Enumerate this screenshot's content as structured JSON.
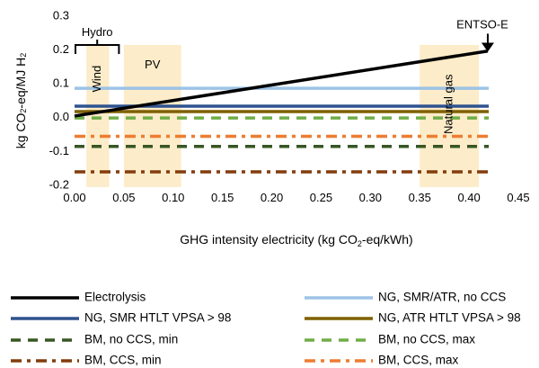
{
  "chart_data": {
    "type": "line",
    "xlabel": "GHG intensity electricity (kg CO2-eq/kWh)",
    "ylabel": "kg CO2-eq/MJ H2",
    "xlim": [
      0,
      0.45
    ],
    "ylim": [
      -0.2,
      0.3
    ],
    "x_ticks": [
      "0.00",
      "0.05",
      "0.10",
      "0.15",
      "0.20",
      "0.25",
      "0.30",
      "0.35",
      "0.40",
      "0.45"
    ],
    "y_ticks": [
      "-0.2",
      "-0.1",
      "0.0",
      "0.1",
      "0.2",
      "0.3"
    ],
    "x_tick_values": [
      0,
      0.05,
      0.1,
      0.15,
      0.2,
      0.25,
      0.3,
      0.35,
      0.4,
      0.45
    ],
    "y_tick_values": [
      -0.2,
      -0.1,
      0,
      0.1,
      0.2,
      0.3
    ],
    "grid": false,
    "legend_position": "bottom",
    "bands": [
      {
        "label": "Wind",
        "x_range": [
          0.012,
          0.035
        ],
        "label_orientation": "vertical"
      },
      {
        "label": "PV",
        "x_range": [
          0.05,
          0.108
        ],
        "label_orientation": "horizontal"
      },
      {
        "label": "Natural gas",
        "x_range": [
          0.35,
          0.41
        ],
        "label_orientation": "vertical"
      }
    ],
    "annotations": [
      {
        "text": "Hydro",
        "type": "bracket",
        "x_range": [
          0.0,
          0.045
        ],
        "y": 0.215
      },
      {
        "text": "ENTSO-E",
        "type": "arrow",
        "x": 0.419,
        "y": 0.195
      }
    ],
    "series": [
      {
        "name": "Electrolysis",
        "x": [
          0,
          0.419
        ],
        "y": [
          0.005,
          0.197
        ],
        "color": "#000000",
        "style": "solid"
      },
      {
        "name": "NG, SMR/ATR, no CCS",
        "x": [
          0,
          0.42
        ],
        "y": [
          0.087,
          0.087
        ],
        "color": "#9dc3e6",
        "style": "solid"
      },
      {
        "name": "NG, SMR HTLT VPSA > 98",
        "x": [
          0,
          0.42
        ],
        "y": [
          0.034,
          0.034
        ],
        "color": "#2f528f",
        "style": "solid"
      },
      {
        "name": "NG, ATR HTLT VPSA > 98",
        "x": [
          0,
          0.42
        ],
        "y": [
          0.018,
          0.018
        ],
        "color": "#7f6000",
        "style": "solid"
      },
      {
        "name": "BM, no CCS, min",
        "x": [
          0,
          0.42
        ],
        "y": [
          -0.085,
          -0.085
        ],
        "color": "#375623",
        "style": "dash"
      },
      {
        "name": "BM, no CCS, max",
        "x": [
          0,
          0.42
        ],
        "y": [
          -0.001,
          -0.001
        ],
        "color": "#70ad47",
        "style": "dash"
      },
      {
        "name": "BM, CCS, min",
        "x": [
          0,
          0.42
        ],
        "y": [
          -0.16,
          -0.16
        ],
        "color": "#843c0c",
        "style": "dashdot"
      },
      {
        "name": "BM, CCS, max",
        "x": [
          0,
          0.42
        ],
        "y": [
          -0.055,
          -0.055
        ],
        "color": "#ed7d31",
        "style": "dashdot"
      }
    ]
  }
}
